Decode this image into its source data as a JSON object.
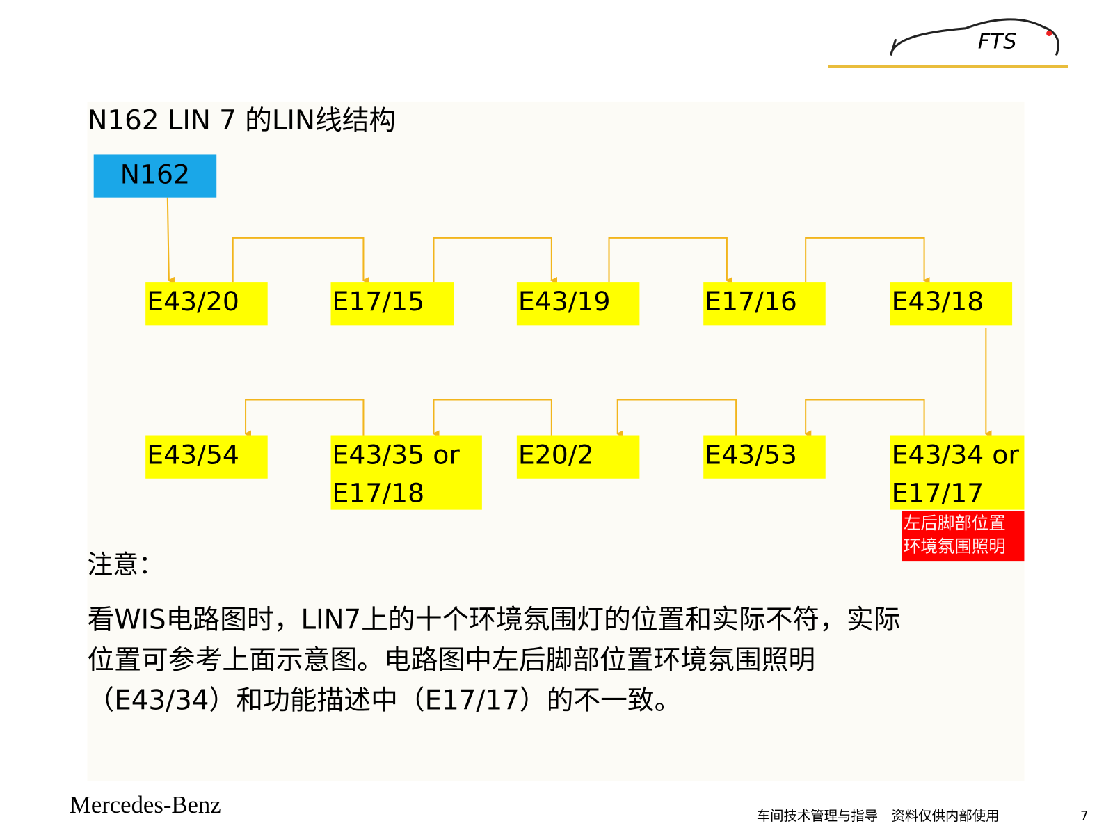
{
  "header": {
    "title": "N162 LIN 7 的LIN线结构",
    "logo": "FTS"
  },
  "nodes": [
    {
      "label": [
        "N162"
      ]
    },
    {
      "label": [
        "E43/20"
      ]
    },
    {
      "label": [
        "E17/15"
      ]
    },
    {
      "label": [
        "E43/19"
      ]
    },
    {
      "label": [
        "E17/16"
      ]
    },
    {
      "label": [
        "E43/18"
      ]
    },
    {
      "label": [
        "E43/54"
      ]
    },
    {
      "label": [
        "E43/35 or",
        "E17/18"
      ]
    },
    {
      "label": [
        "E20/2"
      ]
    },
    {
      "label": [
        "E43/53"
      ]
    },
    {
      "label": [
        "E43/34 or",
        "E17/17"
      ]
    }
  ],
  "callout": [
    "左后脚部位置",
    "环境氛围照明"
  ],
  "note": {
    "heading": "注意：",
    "lines": [
      "看WIS电路图时，LIN7上的十个环境氛围灯的位置和实际不符，实际",
      "位置可参考上面示意图。电路图中左后脚部位置环境氛围照明",
      "（E43/34）和功能描述中（E17/17）的不一致。"
    ]
  },
  "footer": {
    "brand": "Mercedes-Benz",
    "note": "车间技术管理与指导　资料仅供内部使用",
    "page": "7"
  }
}
